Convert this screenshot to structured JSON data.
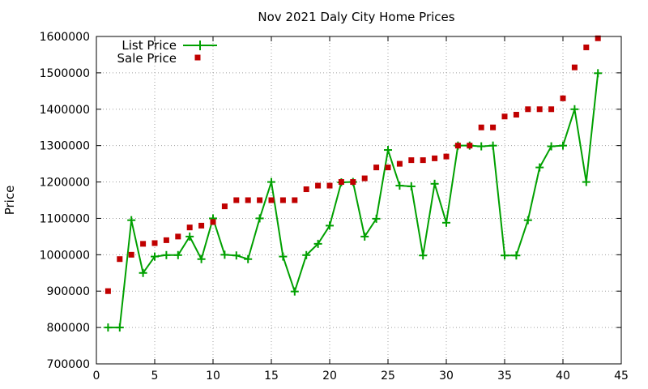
{
  "chart_data": {
    "type": "line+scatter",
    "title": "Nov 2021 Daly City Home Prices",
    "xlabel": "",
    "ylabel": "Price",
    "xlim": [
      0,
      45
    ],
    "ylim": [
      700000,
      1600000
    ],
    "x_ticks": [
      0,
      5,
      10,
      15,
      20,
      25,
      30,
      35,
      40,
      45
    ],
    "y_ticks": [
      700000,
      800000,
      900000,
      1000000,
      1100000,
      1200000,
      1300000,
      1400000,
      1500000,
      1600000
    ],
    "grid": true,
    "legend_position": "top-left",
    "series": [
      {
        "name": "List Price",
        "style": "line-with-plus-markers",
        "color": "#00a000",
        "x": [
          1,
          2,
          3,
          4,
          5,
          6,
          7,
          8,
          9,
          10,
          11,
          12,
          13,
          14,
          15,
          16,
          17,
          18,
          19,
          20,
          21,
          22,
          23,
          24,
          25,
          26,
          27,
          28,
          29,
          30,
          31,
          32,
          33,
          34,
          35,
          36,
          37,
          38,
          39,
          40,
          41,
          42,
          43
        ],
        "y": [
          800000,
          800000,
          1095000,
          950000,
          995000,
          999000,
          999000,
          1050000,
          988000,
          1100000,
          1000000,
          998000,
          988000,
          1100000,
          1200000,
          995000,
          899000,
          999000,
          1030000,
          1080000,
          1199000,
          1200000,
          1050000,
          1099000,
          1288000,
          1190000,
          1188000,
          998000,
          1195000,
          1088000,
          1300000,
          1300000,
          1298000,
          1300000,
          998000,
          998000,
          1095000,
          1240000,
          1298000,
          1300000,
          1400000,
          1200000,
          1499000
        ]
      },
      {
        "name": "Sale Price",
        "style": "square-markers",
        "color": "#c00000",
        "x": [
          1,
          2,
          3,
          4,
          5,
          6,
          7,
          8,
          9,
          10,
          11,
          12,
          13,
          14,
          15,
          16,
          17,
          18,
          19,
          20,
          21,
          22,
          23,
          24,
          25,
          26,
          27,
          28,
          29,
          30,
          31,
          32,
          33,
          34,
          35,
          36,
          37,
          38,
          39,
          40,
          41,
          42,
          43
        ],
        "y": [
          900000,
          988000,
          1000000,
          1030000,
          1032000,
          1040000,
          1050000,
          1075000,
          1080000,
          1090000,
          1133000,
          1150000,
          1150000,
          1150000,
          1150000,
          1150000,
          1150000,
          1180000,
          1190000,
          1190000,
          1200000,
          1200000,
          1210000,
          1240000,
          1240000,
          1250000,
          1260000,
          1260000,
          1265000,
          1270000,
          1300000,
          1300000,
          1350000,
          1350000,
          1380000,
          1385000,
          1400000,
          1400000,
          1400000,
          1430000,
          1515000,
          1570000,
          1595000
        ]
      }
    ]
  }
}
